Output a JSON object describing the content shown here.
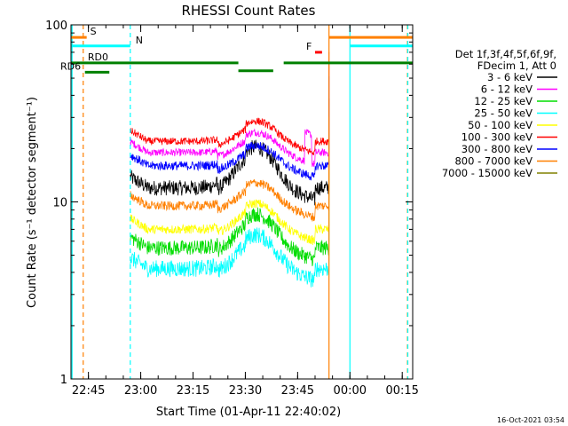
{
  "chart_data": {
    "type": "line",
    "title": "RHESSI Count Rates",
    "xlabel": "Start Time (01-Apr-11 22:40:02)",
    "ylabel": "Count Rate (s⁻¹ detector segment⁻¹)",
    "yscale": "log",
    "ylim": [
      1,
      100
    ],
    "xlim_minutes": [
      0,
      98
    ],
    "x_tick_labels": [
      "22:45",
      "23:00",
      "23:15",
      "23:30",
      "23:45",
      "00:00",
      "00:15"
    ],
    "x_tick_minutes": [
      5,
      20,
      35,
      50,
      65,
      80,
      95
    ],
    "y_tick_labels": [
      "1",
      "10",
      "100"
    ],
    "y_tick_values": [
      1,
      10,
      100
    ],
    "legend_header": [
      "Det 1f,3f,4f,5f,6f,9f,",
      "FDecim 1, Att 0"
    ],
    "legend_placement": "right",
    "series": [
      {
        "name": "3 - 6 keV",
        "color": "#000000",
        "base": 12.0,
        "bump": 1.7,
        "noise": 0.1
      },
      {
        "name": "6 - 12 keV",
        "color": "#ff00ff",
        "base": 19.0,
        "bump": 1.3,
        "noise": 0.05
      },
      {
        "name": "12 - 25 keV",
        "color": "#00dd00",
        "base": 5.5,
        "bump": 1.55,
        "noise": 0.1
      },
      {
        "name": "25 - 50 keV",
        "color": "#00ffff",
        "base": 4.2,
        "bump": 1.55,
        "noise": 0.11
      },
      {
        "name": "50 - 100 keV",
        "color": "#ffff00",
        "base": 7.0,
        "bump": 1.4,
        "noise": 0.06
      },
      {
        "name": "100 - 300 keV",
        "color": "#ff0000",
        "base": 22.0,
        "bump": 1.3,
        "noise": 0.05
      },
      {
        "name": "300 - 800 keV",
        "color": "#0000ff",
        "base": 16.0,
        "bump": 1.3,
        "noise": 0.06
      },
      {
        "name": "800 - 7000 keV",
        "color": "#ff8000",
        "base": 9.5,
        "bump": 1.35,
        "noise": 0.06
      },
      {
        "name": "7000 - 15000 keV",
        "color": "#808000",
        "base": 0,
        "bump": 1,
        "noise": 0
      }
    ],
    "data_window_minutes": [
      17,
      74
    ],
    "state_bars": [
      {
        "label": "S",
        "color": "#ff8000",
        "y": 85,
        "segments": [
          [
            0,
            4.5
          ],
          [
            74,
            98
          ]
        ]
      },
      {
        "label": "N",
        "color": "#00ffff",
        "y": 76,
        "segments": [
          [
            0,
            17
          ],
          [
            80,
            98
          ]
        ]
      },
      {
        "label": "F",
        "color": "#ff0000",
        "y": 70,
        "segments": [
          [
            70,
            72
          ]
        ]
      },
      {
        "label": "RD0",
        "color": "#008000",
        "y": 61,
        "segments": [
          [
            0,
            48
          ],
          [
            61,
            98
          ]
        ]
      },
      {
        "label": "",
        "color": "#008000",
        "y": 55,
        "segments": [
          [
            48,
            58
          ]
        ]
      },
      {
        "label": "RD6",
        "color": "#008000",
        "y": 54,
        "segments": [
          [
            4,
            11
          ]
        ]
      }
    ],
    "vertical_lines": [
      {
        "x": 0.3,
        "color": "#00ffff",
        "style": "solid"
      },
      {
        "x": 3.5,
        "color": "#ff8000",
        "style": "dashed"
      },
      {
        "x": 17.0,
        "color": "#00ffff",
        "style": "dashed"
      },
      {
        "x": 74.0,
        "color": "#ff8000",
        "style": "solid"
      },
      {
        "x": 80.0,
        "color": "#00ffff",
        "style": "solid"
      },
      {
        "x": 96.5,
        "color": "#ff8000",
        "style": "dashed"
      },
      {
        "x": 96.6,
        "color": "#00ffff",
        "style": "dashed"
      }
    ],
    "timestamp": "16-Oct-2021 03:54"
  }
}
